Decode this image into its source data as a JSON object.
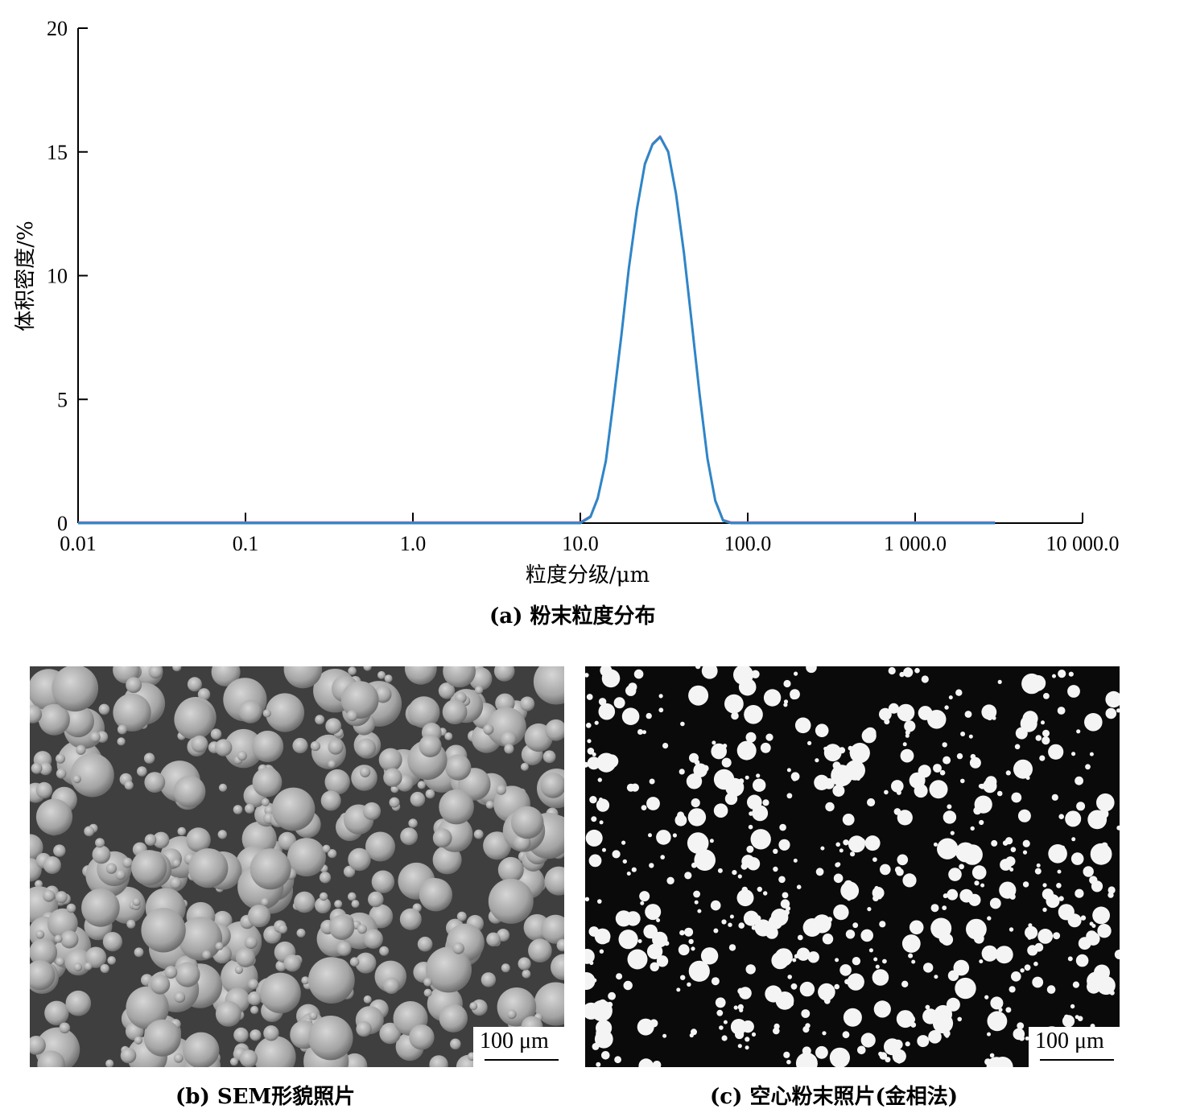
{
  "chart_data": {
    "type": "line",
    "x_scale": "log",
    "xlim": [
      0.01,
      10000
    ],
    "ylim": [
      0,
      20
    ],
    "xlabel": "粒度分级/μm",
    "ylabel": "体积密度/%",
    "x_tick_labels": [
      "0.01",
      "0.1",
      "1.0",
      "10.0",
      "100.0",
      "1 000.0",
      "10 000.0"
    ],
    "x_tick_values": [
      0.01,
      0.1,
      1,
      10,
      100,
      1000,
      10000
    ],
    "y_tick_labels": [
      "0",
      "5",
      "10",
      "15",
      "20"
    ],
    "y_tick_values": [
      0,
      5,
      10,
      15,
      20
    ],
    "grid": false,
    "series": [
      {
        "color": "#2e86c8",
        "x": [
          0.01,
          10,
          11.5,
          12.7,
          14.2,
          15.7,
          17.6,
          19.5,
          21.8,
          24.3,
          27,
          30,
          33.5,
          37.3,
          41.6,
          46.3,
          51.6,
          57.5,
          64,
          71.3,
          79.4,
          88.4,
          3000
        ],
        "y": [
          0,
          0,
          0.25,
          1,
          2.5,
          4.8,
          7.6,
          10.3,
          12.7,
          14.5,
          15.3,
          15.6,
          15.0,
          13.3,
          10.9,
          8.1,
          5.2,
          2.6,
          0.9,
          0.1,
          0,
          0,
          0
        ]
      }
    ]
  },
  "captions": {
    "a": "(a) 粉末粒度分布",
    "b": "(b) SEM形貌照片",
    "c": "(c) 空心粉末照片(金相法)"
  },
  "scalebars": {
    "b": "100 μm",
    "c": "100 μm"
  }
}
